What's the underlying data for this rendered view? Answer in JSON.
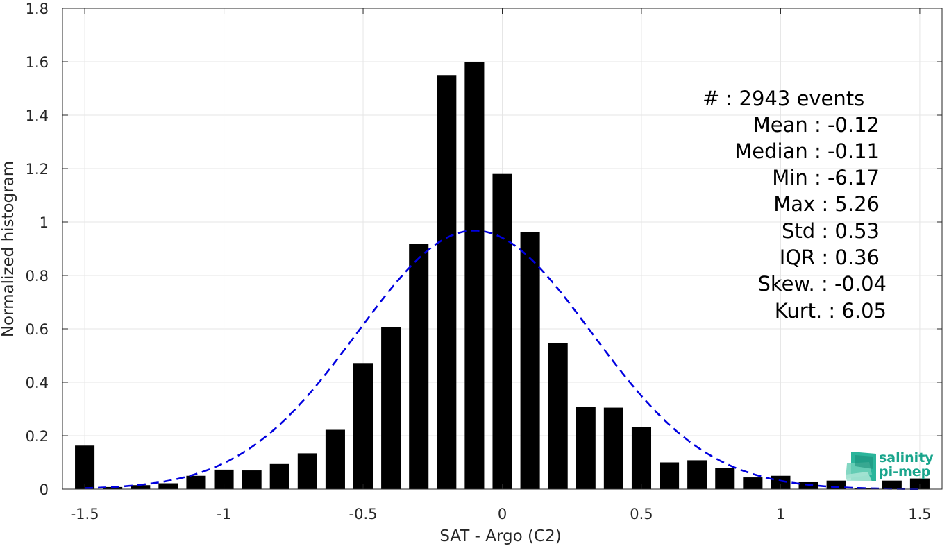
{
  "chart_data": {
    "type": "bar",
    "xlabel": "SAT - Argo (C2)",
    "ylabel": "Normalized histogram",
    "xlim": [
      -1.58,
      1.58
    ],
    "ylim": [
      0,
      1.8
    ],
    "xticks": [
      -1.5,
      -1,
      -0.5,
      0,
      0.5,
      1,
      1.5
    ],
    "xtick_labels": [
      "-1.5",
      "-1",
      "-0.5",
      "0",
      "0.5",
      "1",
      "1.5"
    ],
    "yticks": [
      0,
      0.2,
      0.4,
      0.6,
      0.8,
      1,
      1.2,
      1.4,
      1.6,
      1.8
    ],
    "ytick_labels": [
      "0",
      "0.2",
      "0.4",
      "0.6",
      "0.8",
      "1",
      "1.2",
      "1.4",
      "1.6",
      "1.8"
    ],
    "grid": true,
    "bar_width": 0.07,
    "series": [
      {
        "x": [
          -1.5,
          -1.4,
          -1.3,
          -1.2,
          -1.1,
          -1.0,
          -0.9,
          -0.8,
          -0.7,
          -0.6,
          -0.5,
          -0.4,
          -0.3,
          -0.2,
          -0.1,
          0.0,
          0.1,
          0.2,
          0.3,
          0.4,
          0.5,
          0.6,
          0.7,
          0.8,
          0.9,
          1.0,
          1.1,
          1.2,
          1.3,
          1.4,
          1.5
        ],
        "values": [
          0.163,
          0.008,
          0.015,
          0.022,
          0.05,
          0.073,
          0.07,
          0.094,
          0.134,
          0.222,
          0.472,
          0.607,
          0.918,
          1.55,
          1.6,
          1.18,
          0.962,
          0.548,
          0.308,
          0.305,
          0.232,
          0.1,
          0.108,
          0.08,
          0.044,
          0.05,
          0.026,
          0.032,
          0.004,
          0.032,
          0.04
        ],
        "color": "#000000"
      }
    ],
    "fit_curve": {
      "type": "normal",
      "mean": -0.1,
      "std": 0.42,
      "peak": 0.968,
      "x_range": [
        -1.5,
        1.5
      ],
      "color": "#0000e0",
      "style": "dashed"
    }
  },
  "stats": {
    "lines": [
      "#  : 2943 events",
      "Mean : -0.12",
      "Median : -0.11",
      "Min : -6.17",
      "Max : 5.26",
      "Std : 0.53",
      "IQR : 0.36",
      "Skew. : -0.04",
      "Kurt. : 6.05"
    ]
  },
  "logo": {
    "line1": "salinity",
    "line2": "pi-mep",
    "color": "#1aa58c"
  }
}
